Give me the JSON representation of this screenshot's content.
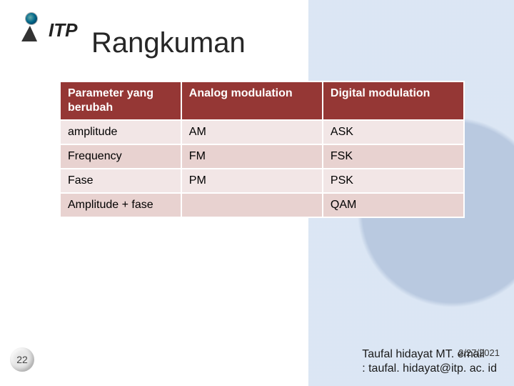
{
  "logo_text": "ITP",
  "title": "Rangkuman",
  "table": {
    "header_bg": "#953735",
    "row_alt_a": "#f2e6e6",
    "row_alt_b": "#e8d2d0",
    "columns": [
      "Parameter yang berubah",
      "Analog modulation",
      "Digital modulation"
    ],
    "rows": [
      [
        "amplitude",
        "AM",
        "ASK"
      ],
      [
        "Frequency",
        "FM",
        "FSK"
      ],
      [
        "Fase",
        "PM",
        "PSK"
      ],
      [
        "Amplitude + fase",
        "",
        "QAM"
      ]
    ]
  },
  "page_number": "22",
  "footer": {
    "line1": "Taufal hidayat MT. email",
    "line2": ": taufal. hidayat@itp. ac. id",
    "date": "2/27/2021"
  }
}
